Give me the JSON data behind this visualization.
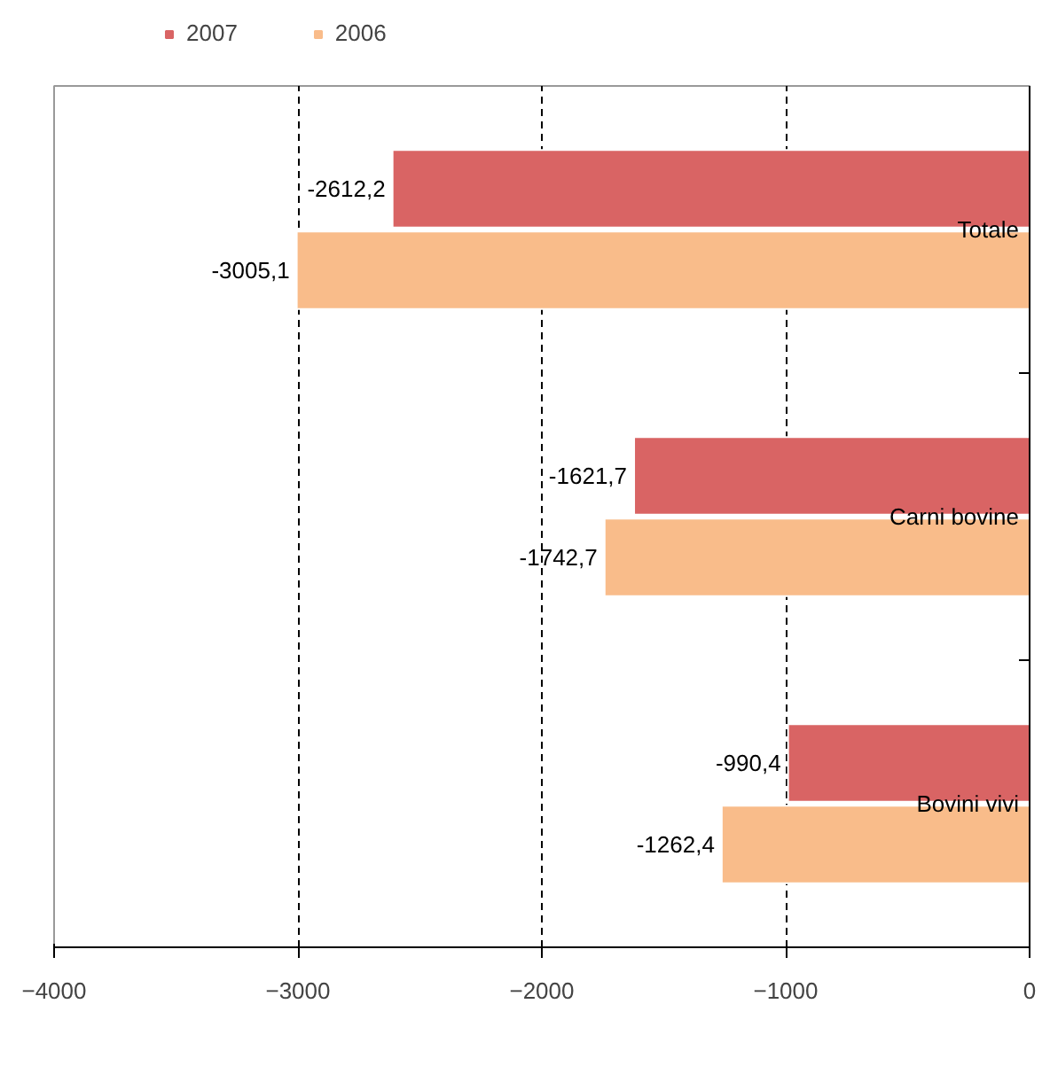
{
  "chart_data": {
    "type": "bar",
    "orientation": "horizontal",
    "categories": [
      "Totale",
      "Carni bovine",
      "Bovini vivi"
    ],
    "series": [
      {
        "name": "2007",
        "color": "#d96464",
        "values": [
          -2612.2,
          -1621.7,
          -990.4
        ],
        "value_labels": [
          "-2612,2",
          "-1621,7",
          "-990,4"
        ]
      },
      {
        "name": "2006",
        "color": "#f9bc8a",
        "values": [
          -3005.1,
          -1742.7,
          -1262.4
        ],
        "value_labels": [
          "-3005,1",
          "-1742,7",
          "-1262,4"
        ]
      }
    ],
    "xlim": [
      -4000,
      0
    ],
    "xticks": [
      -4000,
      -3000,
      -2000,
      -1000,
      0
    ],
    "grid": "x",
    "legend": "top"
  }
}
